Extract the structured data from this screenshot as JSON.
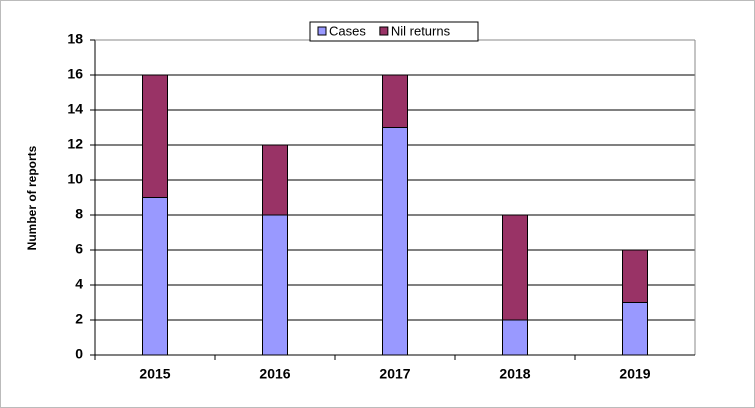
{
  "chart_data": {
    "type": "stacked-bar",
    "y_label": "Number of reports",
    "categories": [
      "2015",
      "2016",
      "2017",
      "2018",
      "2019"
    ],
    "series": [
      {
        "name": "Cases",
        "color": "#9999ff",
        "values": [
          9,
          8,
          13,
          2,
          3
        ]
      },
      {
        "name": "Nil returns",
        "color": "#993366",
        "values": [
          7,
          4,
          3,
          6,
          3
        ]
      }
    ],
    "ylim": [
      0,
      18
    ],
    "yticks": [
      0,
      2,
      4,
      6,
      8,
      10,
      12,
      14,
      16,
      18
    ],
    "grid": true
  }
}
